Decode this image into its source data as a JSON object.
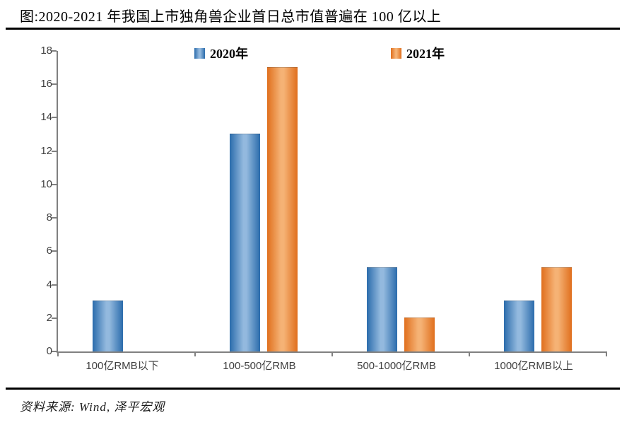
{
  "title": "图:2020-2021 年我国上市独角兽企业首日总市值普遍在 100 亿以上",
  "source": "资料来源: Wind, 泽平宏观",
  "chart_data": {
    "type": "bar",
    "title": "图:2020-2021 年我国上市独角兽企业首日总市值普遍在 100 亿以上",
    "categories": [
      "100亿RMB以下",
      "100-500亿RMB",
      "500-1000亿RMB",
      "1000亿RMB以上"
    ],
    "series": [
      {
        "name": "2020年",
        "values": [
          3,
          13,
          5,
          3
        ]
      },
      {
        "name": "2021年",
        "values": [
          0,
          17,
          2,
          5
        ]
      }
    ],
    "xlabel": "",
    "ylabel": "",
    "ylim": [
      0,
      18
    ],
    "ytick_step": 2,
    "grid": false,
    "legend_position": "top"
  },
  "colors": {
    "series_2020_edge": "#2b6cac",
    "series_2020_mid": "#93b9de",
    "series_2021_edge": "#e06f1d",
    "series_2021_mid": "#f5b275",
    "axis_line": "#808080",
    "tick_label": "#3f3f3f",
    "rule": "#000000"
  }
}
